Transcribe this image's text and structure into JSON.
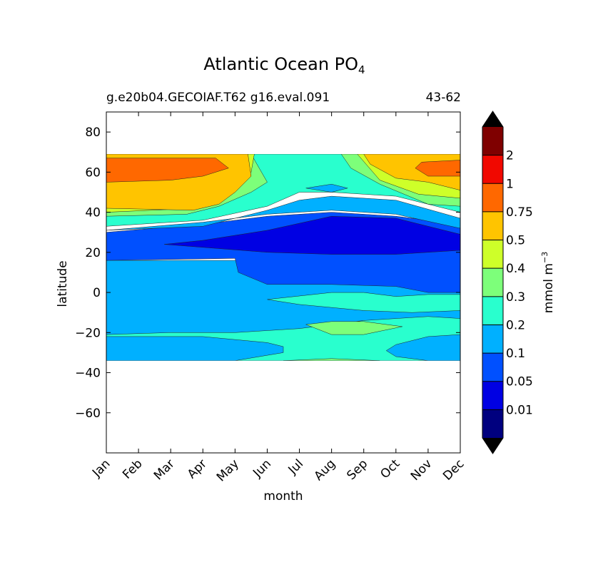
{
  "chart_data": {
    "type": "heatmap",
    "subtype": "filled-contour",
    "title": {
      "main": "Atlantic Ocean PO",
      "subscript": "4"
    },
    "subtitle_left": "g.e20b04.GECOIAF.T62 g16.eval.091",
    "subtitle_right": "43-62",
    "xlabel": "month",
    "ylabel": "latitude",
    "x_categories": [
      "Jan",
      "Feb",
      "Mar",
      "Apr",
      "May",
      "Jun",
      "Jul",
      "Aug",
      "Sep",
      "Oct",
      "Nov",
      "Dec"
    ],
    "ylim": [
      -80,
      90
    ],
    "yticks": [
      80,
      60,
      40,
      20,
      0,
      -20,
      -40,
      -60
    ],
    "ytick_labels": [
      "80",
      "60",
      "40",
      "20",
      "0",
      "−20",
      "−40",
      "−60"
    ],
    "data_extent_lat": [
      -34,
      69
    ],
    "colorbar": {
      "label": {
        "main": "mmol m",
        "superscript": "−3"
      },
      "levels": [
        0,
        0.01,
        0.05,
        0.1,
        0.2,
        0.3,
        0.4,
        0.5,
        0.75,
        1,
        2,
        3
      ],
      "tick_labels": [
        "0.01",
        "0.05",
        "0.1",
        "0.2",
        "0.3",
        "0.4",
        "0.5",
        "0.75",
        "1",
        "2"
      ],
      "colors": [
        "#00007f",
        "#0000e3",
        "#0050ff",
        "#00b0ff",
        "#29ffce",
        "#7dff7a",
        "#ceff29",
        "#ffc400",
        "#ff6800",
        "#f10800",
        "#7f0000"
      ],
      "extend_low_color": "#000000",
      "extend_high_color": "#000000"
    },
    "bands": [
      {
        "level_index": 3,
        "note": "south of 20N background",
        "boundary": [
          [
            0,
            -34
          ],
          [
            0,
            16
          ],
          [
            11,
            16
          ],
          [
            11,
            -34
          ]
        ]
      },
      {
        "level_index": 4,
        "note": "southern subtropics",
        "boundary": [
          [
            0,
            -34
          ],
          [
            0,
            -21
          ],
          [
            2,
            -20
          ],
          [
            4,
            -20
          ],
          [
            6,
            -18
          ],
          [
            8,
            -14
          ],
          [
            10,
            -12
          ],
          [
            11,
            -13
          ],
          [
            11,
            -34
          ]
        ]
      },
      {
        "level_index": 3,
        "note": "south-east pocket",
        "boundary": [
          [
            0,
            -34
          ],
          [
            0,
            -22
          ],
          [
            3,
            -22
          ],
          [
            5,
            -25
          ],
          [
            5.5,
            -27
          ],
          [
            5.5,
            -30
          ],
          [
            4,
            -34
          ]
        ]
      },
      {
        "level_index": 3,
        "note": "south-east pocket 2",
        "boundary": [
          [
            11,
            -34
          ],
          [
            11,
            -21
          ],
          [
            10,
            -22
          ],
          [
            9,
            -26
          ],
          [
            8.7,
            -29
          ],
          [
            9,
            -32
          ],
          [
            10,
            -34
          ]
        ]
      },
      {
        "level_index": 5,
        "note": "southern tongue",
        "boundary": [
          [
            6.2,
            -16
          ],
          [
            7,
            -14.5
          ],
          [
            8,
            -14.5
          ],
          [
            9.2,
            -17
          ],
          [
            8,
            -21
          ],
          [
            7,
            -21
          ]
        ]
      },
      {
        "level_index": 5,
        "note": "equatorial patch",
        "boundary": [
          [
            6.3,
            -3
          ],
          [
            7,
            -1.5
          ],
          [
            8,
            -1.5
          ],
          [
            8.6,
            -4
          ],
          [
            7.5,
            -5
          ]
        ]
      },
      {
        "level_index": 5,
        "note": "southern edge",
        "boundary": [
          [
            5.5,
            -34
          ],
          [
            7,
            -33
          ],
          [
            8.5,
            -34
          ]
        ]
      },
      {
        "level_index": 4,
        "note": "equator west",
        "boundary": [
          [
            11,
            -1
          ],
          [
            10,
            -1
          ],
          [
            9,
            -2
          ],
          [
            8,
            0
          ],
          [
            7,
            0
          ],
          [
            5,
            -3.5
          ],
          [
            6,
            -6
          ],
          [
            8,
            -9
          ],
          [
            9.5,
            -10
          ],
          [
            11,
            -9
          ]
        ]
      },
      {
        "level_index": 2,
        "note": "tropical north",
        "boundary": [
          [
            0,
            30
          ],
          [
            0,
            16
          ],
          [
            4,
            17
          ],
          [
            4.1,
            10
          ],
          [
            5,
            4
          ],
          [
            7,
            4
          ],
          [
            9,
            3
          ],
          [
            10,
            0
          ],
          [
            11,
            0
          ],
          [
            11,
            34
          ],
          [
            9,
            38
          ],
          [
            7,
            40
          ],
          [
            5,
            38
          ],
          [
            3,
            34
          ]
        ]
      },
      {
        "level_index": 1,
        "note": "oligotrophic gyre",
        "boundary": [
          [
            1.8,
            24
          ],
          [
            3,
            26
          ],
          [
            5,
            31
          ],
          [
            7,
            38
          ],
          [
            9,
            37
          ],
          [
            11,
            29
          ],
          [
            11,
            21
          ],
          [
            9,
            19
          ],
          [
            7,
            19
          ],
          [
            5,
            20
          ]
        ]
      },
      {
        "level_index": 3,
        "note": "north transition",
        "boundary": [
          [
            0,
            31
          ],
          [
            3,
            33
          ],
          [
            5,
            41
          ],
          [
            6,
            46
          ],
          [
            7,
            48
          ],
          [
            9,
            46
          ],
          [
            11,
            37
          ],
          [
            11,
            32
          ],
          [
            9,
            39
          ],
          [
            7,
            41
          ],
          [
            5,
            39
          ],
          [
            3,
            35
          ]
        ]
      },
      {
        "level_index": 4,
        "note": "subpolar rim",
        "boundary": [
          [
            0,
            33
          ],
          [
            3,
            36
          ],
          [
            5,
            43
          ],
          [
            6,
            50
          ],
          [
            7,
            50
          ],
          [
            9,
            48
          ],
          [
            11,
            40
          ],
          [
            11,
            69
          ],
          [
            0,
            69
          ]
        ]
      },
      {
        "level_index": 5,
        "note": "high lat green",
        "boundary": [
          [
            0,
            38
          ],
          [
            2.5,
            39
          ],
          [
            3.5,
            43
          ],
          [
            4.5,
            50
          ],
          [
            5,
            55
          ],
          [
            4.5,
            69
          ],
          [
            0,
            69
          ]
        ]
      },
      {
        "level_index": 5,
        "note": "high lat green east",
        "boundary": [
          [
            11,
            43
          ],
          [
            10,
            44
          ],
          [
            8.5,
            54
          ],
          [
            7.6,
            62
          ],
          [
            7.3,
            69
          ],
          [
            11,
            69
          ]
        ]
      },
      {
        "level_index": 6,
        "note": "high lat yellow-green west",
        "boundary": [
          [
            0,
            40
          ],
          [
            2.8,
            42
          ],
          [
            3.8,
            48
          ],
          [
            4.5,
            60
          ],
          [
            4.6,
            69
          ],
          [
            0,
            69
          ]
        ]
      },
      {
        "level_index": 6,
        "note": "high lat yellow-green east",
        "boundary": [
          [
            11,
            47
          ],
          [
            9.7,
            49
          ],
          [
            8.5,
            56
          ],
          [
            7.8,
            69
          ],
          [
            11,
            69
          ]
        ]
      },
      {
        "level_index": 7,
        "note": "orange-yellow west",
        "boundary": [
          [
            0,
            42
          ],
          [
            2.7,
            41
          ],
          [
            3.5,
            44
          ],
          [
            4,
            50
          ],
          [
            4.5,
            58
          ],
          [
            4.4,
            69
          ],
          [
            0,
            69
          ]
        ]
      },
      {
        "level_index": 7,
        "note": "orange-yellow east",
        "boundary": [
          [
            11,
            51
          ],
          [
            10,
            55
          ],
          [
            9,
            57
          ],
          [
            8.2,
            64
          ],
          [
            8,
            69
          ],
          [
            11,
            69
          ]
        ]
      },
      {
        "level_index": 8,
        "note": "orange west",
        "boundary": [
          [
            0,
            55
          ],
          [
            2,
            56
          ],
          [
            3,
            58
          ],
          [
            3.8,
            62
          ],
          [
            3.4,
            67
          ],
          [
            0,
            67
          ]
        ]
      },
      {
        "level_index": 8,
        "note": "orange east",
        "boundary": [
          [
            9.6,
            62
          ],
          [
            10,
            58
          ],
          [
            11,
            58
          ],
          [
            11,
            66
          ],
          [
            9.8,
            65
          ]
        ]
      },
      {
        "level_index": 3,
        "note": "midlat blue strip",
        "boundary": [
          [
            6.2,
            52
          ],
          [
            7,
            54
          ],
          [
            7.5,
            52
          ],
          [
            7,
            50
          ]
        ]
      }
    ]
  }
}
